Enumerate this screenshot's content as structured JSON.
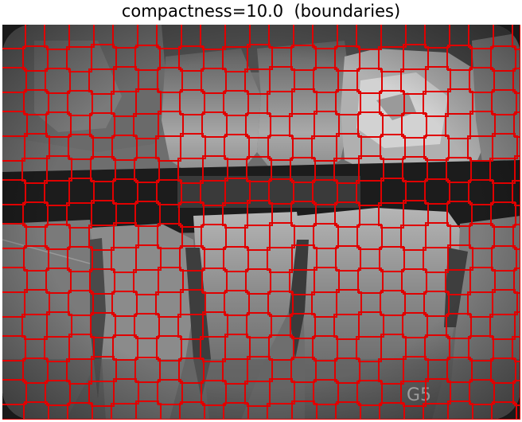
{
  "title": "compactness=10.0  (boundaries)",
  "image": {
    "subject": "dental bitewing x-ray radiograph with superpixel segmentation boundaries",
    "embedded_marking": "G5",
    "boundary_color": "#ff0000",
    "background_color": "#111111"
  }
}
